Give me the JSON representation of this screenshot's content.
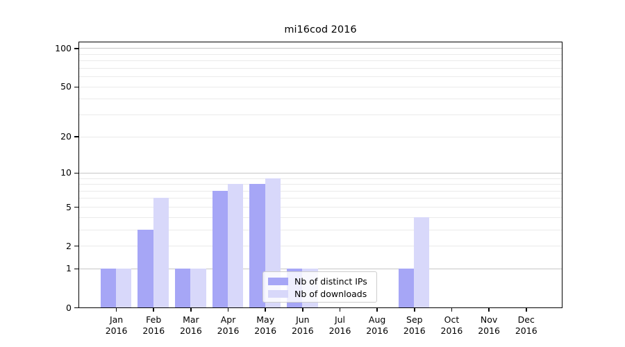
{
  "chart_data": {
    "type": "bar",
    "title": "mi16cod 2016",
    "categories": [
      "Jan 2016",
      "Feb 2016",
      "Mar 2016",
      "Apr 2016",
      "May 2016",
      "Jun 2016",
      "Jul 2016",
      "Aug 2016",
      "Sep 2016",
      "Oct 2016",
      "Nov 2016",
      "Dec 2016"
    ],
    "x_tick_lines": [
      [
        "Jan",
        "2016"
      ],
      [
        "Feb",
        "2016"
      ],
      [
        "Mar",
        "2016"
      ],
      [
        "Apr",
        "2016"
      ],
      [
        "May",
        "2016"
      ],
      [
        "Jun",
        "2016"
      ],
      [
        "Jul",
        "2016"
      ],
      [
        "Aug",
        "2016"
      ],
      [
        "Sep",
        "2016"
      ],
      [
        "Oct",
        "2016"
      ],
      [
        "Nov",
        "2016"
      ],
      [
        "Dec",
        "2016"
      ]
    ],
    "series": [
      {
        "name": "Nb of distinct IPs",
        "values": [
          1,
          3,
          1,
          7,
          8,
          1,
          0,
          0,
          1,
          0,
          0,
          0
        ],
        "color": "#a6a6f6"
      },
      {
        "name": "Nb of downloads",
        "values": [
          1,
          6,
          1,
          8,
          9,
          1,
          0,
          0,
          4,
          0,
          0,
          0
        ],
        "color": "#d8d8fa"
      }
    ],
    "xlabel": "",
    "ylabel": "",
    "y_axis": {
      "scale": "log1p",
      "tick_labels": [
        "0",
        "1",
        "2",
        "5",
        "10",
        "20",
        "50",
        "100"
      ],
      "tick_values": [
        0,
        1,
        2,
        5,
        10,
        20,
        50,
        100
      ],
      "major_gridlines": [
        1,
        10,
        100
      ],
      "minor_gridlines": [
        2,
        3,
        4,
        5,
        6,
        7,
        8,
        9,
        20,
        30,
        40,
        50,
        60,
        70,
        80,
        90
      ]
    },
    "legend_position": "lower center",
    "grid": true
  },
  "colors": {
    "bar_distinct_ips": "#a6a6f6",
    "bar_downloads": "#d8d8fa",
    "grid_major": "#c6c6c6",
    "grid_minor": "#eaeaea",
    "axis": "#000000",
    "legend_border": "#cccccc"
  }
}
